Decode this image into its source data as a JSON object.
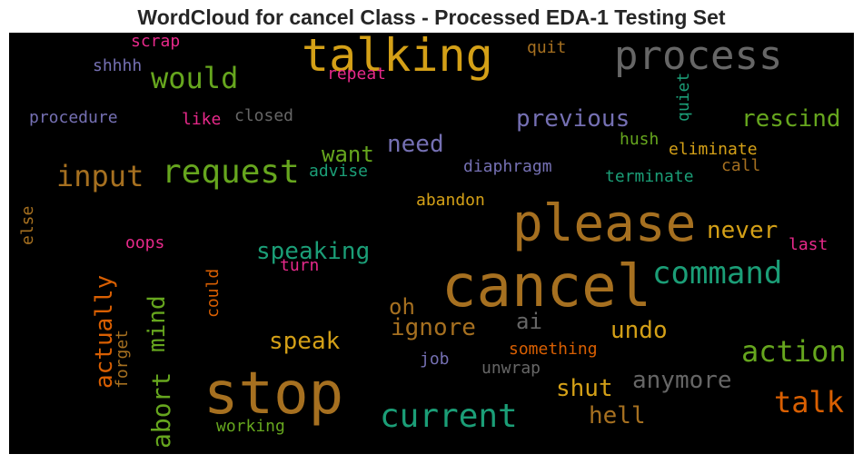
{
  "title": "WordCloud for cancel Class - Processed EDA-1 Testing Set",
  "colors": {
    "orange": "#a67020",
    "gold": "#d4a017",
    "green": "#66a61e",
    "teal": "#1b9e77",
    "purple": "#7570b3",
    "pink": "#e7298a",
    "gray": "#666666",
    "rust": "#d95f02"
  },
  "words": [
    "cancel",
    "stop",
    "please",
    "talking",
    "process",
    "request",
    "current",
    "command",
    "action",
    "talk",
    "would",
    "input",
    "previous",
    "rescind",
    "speaking",
    "abort",
    "mind",
    "actually",
    "need",
    "want",
    "never",
    "ignore",
    "speak",
    "undo",
    "shut",
    "anymore",
    "hell",
    "oh",
    "ai",
    "scrap",
    "shhhh",
    "repeat",
    "quit",
    "quiet",
    "procedure",
    "like",
    "closed",
    "hush",
    "eliminate",
    "call",
    "diaphragm",
    "advise",
    "terminate",
    "abandon",
    "else",
    "oops",
    "last",
    "turn",
    "could",
    "forget",
    "something",
    "job",
    "unwrap",
    "working"
  ]
}
